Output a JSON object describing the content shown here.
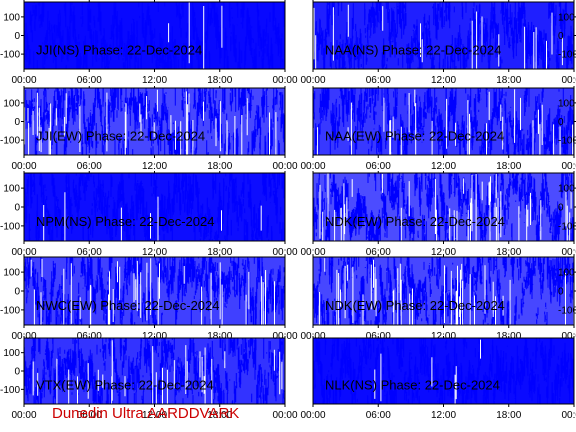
{
  "footer_text": "Dunedin Ultra AARDDVARK",
  "colors": {
    "trace": "#0000ff",
    "axis": "#000000",
    "footer": "#cc0000",
    "background": "#ffffff"
  },
  "chart_data": [
    {
      "type": "line",
      "title": "JJI(NS) Phase: 22-Dec-2024",
      "x_ticks": [
        "00:00",
        "06:00",
        "12:00",
        "18:00",
        "00:00"
      ],
      "y_ticks": [
        "100",
        "0",
        "-100"
      ],
      "ylim": [
        -180,
        180
      ],
      "trace_color": "#0000ff",
      "y_axis_side": "left"
    },
    {
      "type": "line",
      "title": "NAA(NS) Phase: 22-Dec-2024",
      "x_ticks": [
        "00:00",
        "06:00",
        "12:00",
        "18:00",
        "00:00"
      ],
      "y_ticks": [
        "100",
        "0",
        "-100"
      ],
      "ylim": [
        -180,
        180
      ],
      "trace_color": "#0000ff",
      "y_axis_side": "right"
    },
    {
      "type": "line",
      "title": "JJI(EW) Phase: 22-Dec-2024",
      "x_ticks": [
        "00:00",
        "06:00",
        "12:00",
        "18:00",
        "00:00"
      ],
      "y_ticks": [
        "100",
        "0",
        "-100"
      ],
      "ylim": [
        -180,
        180
      ],
      "trace_color": "#0000ff",
      "y_axis_side": "left"
    },
    {
      "type": "line",
      "title": "NAA(EW) Phase: 22-Dec-2024",
      "x_ticks": [
        "00:00",
        "06:00",
        "12:00",
        "18:00",
        "00:00"
      ],
      "y_ticks": [
        "100",
        "0",
        "-100"
      ],
      "ylim": [
        -180,
        180
      ],
      "trace_color": "#0000ff",
      "y_axis_side": "right"
    },
    {
      "type": "line",
      "title": "NPM(NS) Phase: 22-Dec-2024",
      "x_ticks": [
        "00:00",
        "06:00",
        "12:00",
        "18:00",
        "00:00"
      ],
      "y_ticks": [
        "100",
        "0",
        "-100"
      ],
      "ylim": [
        -180,
        180
      ],
      "trace_color": "#0000ff",
      "y_axis_side": "left"
    },
    {
      "type": "line",
      "title": "NDK(EW) Phase: 22-Dec-2024",
      "x_ticks": [
        "00:00",
        "06:00",
        "12:00",
        "18:00",
        "00:00"
      ],
      "y_ticks": [
        "100",
        "0",
        "-100"
      ],
      "ylim": [
        -180,
        180
      ],
      "trace_color": "#0000ff",
      "y_axis_side": "right"
    },
    {
      "type": "line",
      "title": "NWC(EW) Phase: 22-Dec-2024",
      "x_ticks": [
        "00:00",
        "06:00",
        "12:00",
        "18:00",
        "00:00"
      ],
      "y_ticks": [
        "100",
        "0",
        "-100"
      ],
      "ylim": [
        -180,
        180
      ],
      "trace_color": "#0000ff",
      "y_axis_side": "left"
    },
    {
      "type": "line",
      "title": "NDK(EW) Phase: 22-Dec-2024",
      "x_ticks": [
        "00:00",
        "06:00",
        "12:00",
        "18:00",
        "00:00"
      ],
      "y_ticks": [
        "100",
        "0",
        "-100"
      ],
      "ylim": [
        -180,
        180
      ],
      "trace_color": "#0000ff",
      "y_axis_side": "right"
    },
    {
      "type": "line",
      "title": "VTX(EW) Phase: 22-Dec-2024",
      "x_ticks": [
        "00:00",
        "06:00",
        "12:00",
        "18:00",
        "00:00"
      ],
      "y_ticks": [
        "100",
        "0",
        "-100"
      ],
      "ylim": [
        -180,
        180
      ],
      "trace_color": "#0000ff",
      "y_axis_side": "left"
    },
    {
      "type": "line",
      "title": "NLK(NS) Phase: 22-Dec-2024",
      "x_ticks": [
        "00:00",
        "06:00",
        "12:00",
        "18:00",
        "00:00"
      ],
      "y_ticks": [],
      "ylim": [
        -180,
        180
      ],
      "trace_color": "#0000ff",
      "y_axis_side": "right"
    }
  ]
}
